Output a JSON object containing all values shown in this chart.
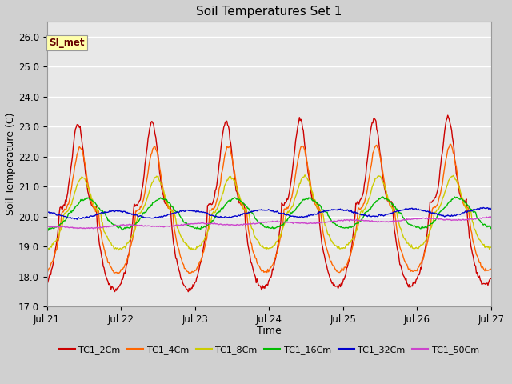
{
  "title": "Soil Temperatures Set 1",
  "xlabel": "Time",
  "ylabel": "Soil Temperature (C)",
  "ylim": [
    17.0,
    26.5
  ],
  "yticks": [
    17.0,
    18.0,
    19.0,
    20.0,
    21.0,
    22.0,
    23.0,
    24.0,
    25.0,
    26.0
  ],
  "xtick_labels": [
    "Jul 21",
    "Jul 22",
    "Jul 23",
    "Jul 24",
    "Jul 25",
    "Jul 26",
    "Jul 27"
  ],
  "xtick_positions": [
    0,
    1,
    2,
    3,
    4,
    5,
    6
  ],
  "annotation_text": "SI_met",
  "series_colors": {
    "TC1_2Cm": "#cc0000",
    "TC1_4Cm": "#ff6600",
    "TC1_8Cm": "#cccc00",
    "TC1_16Cm": "#00bb00",
    "TC1_32Cm": "#0000cc",
    "TC1_50Cm": "#cc44cc"
  },
  "fig_bg": "#d0d0d0",
  "plot_bg": "#e8e8e8",
  "grid_color": "#ffffff",
  "legend_colors": [
    "#cc0000",
    "#ff6600",
    "#cccc00",
    "#00bb00",
    "#0000cc",
    "#cc44cc"
  ],
  "legend_labels": [
    "TC1_2Cm",
    "TC1_4Cm",
    "TC1_8Cm",
    "TC1_16Cm",
    "TC1_32Cm",
    "TC1_50Cm"
  ]
}
